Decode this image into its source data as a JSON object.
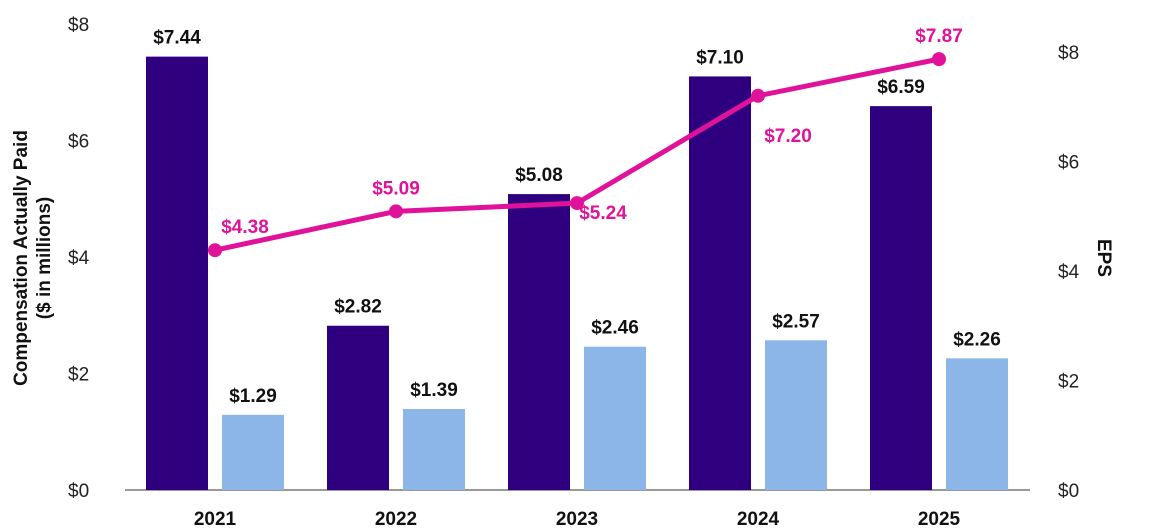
{
  "chart_data": {
    "type": "bar",
    "categories": [
      "2021",
      "2022",
      "2023",
      "2024",
      "2025"
    ],
    "series": [
      {
        "name": "Compensation Actually Paid (dark)",
        "type": "bar",
        "axis": "left",
        "values": [
          7.44,
          2.82,
          5.08,
          7.1,
          6.59
        ],
        "labels": [
          "$7.44",
          "$2.82",
          "$5.08",
          "$7.10",
          "$6.59"
        ],
        "color": "#2e0080"
      },
      {
        "name": "Compensation Actually Paid (light)",
        "type": "bar",
        "axis": "left",
        "values": [
          1.29,
          1.39,
          2.46,
          2.57,
          2.26
        ],
        "labels": [
          "$1.29",
          "$1.39",
          "$2.46",
          "$2.57",
          "$2.26"
        ],
        "color": "#8db6e8"
      },
      {
        "name": "EPS",
        "type": "line",
        "axis": "right",
        "values": [
          4.38,
          5.09,
          5.24,
          7.2,
          7.87
        ],
        "labels": [
          "$4.38",
          "$5.09",
          "$5.24",
          "$7.20",
          "$7.87"
        ],
        "color": "#e0129a"
      }
    ],
    "ylabel_line1": "Compensation Actually Paid",
    "ylabel_line2": "($ in millions)",
    "y2label": "EPS",
    "ylim": [
      0,
      8
    ],
    "y2lim": [
      0,
      8.5
    ],
    "yticks": [
      "$0",
      "$2",
      "$4",
      "$6",
      "$8"
    ],
    "y2ticks": [
      "$0",
      "$2",
      "$4",
      "$6",
      "$8"
    ],
    "axis_color": "#999999"
  }
}
